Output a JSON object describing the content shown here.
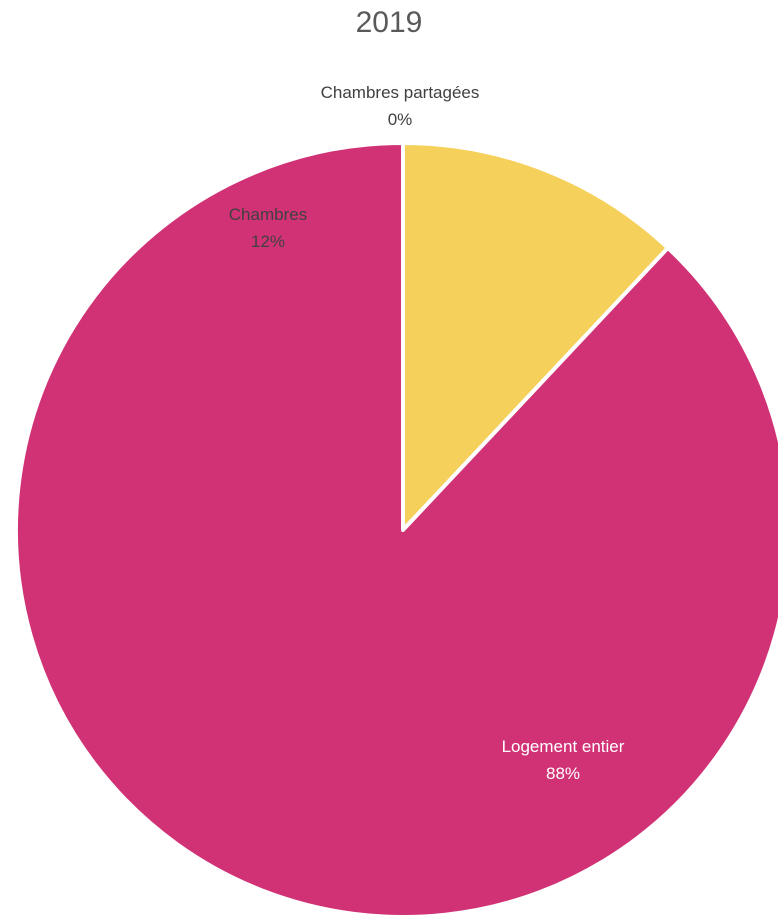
{
  "chart_data": {
    "type": "pie",
    "title": "2019",
    "slices": [
      {
        "label": "Logement entier",
        "value": 88,
        "value_label": "88%",
        "color": "#D13275",
        "label_color": "#FFFFFF"
      },
      {
        "label": "Chambres",
        "value": 12,
        "value_label": "12%",
        "color": "#F5D05A",
        "label_color": "#404040"
      },
      {
        "label": "Chambres partagées",
        "value": 0,
        "value_label": "0%",
        "color": "#F5D05A",
        "label_color": "#404040"
      }
    ],
    "start_angle": "12 o'clock",
    "direction": "clockwise",
    "slice_border_color": "#FFFFFF"
  }
}
